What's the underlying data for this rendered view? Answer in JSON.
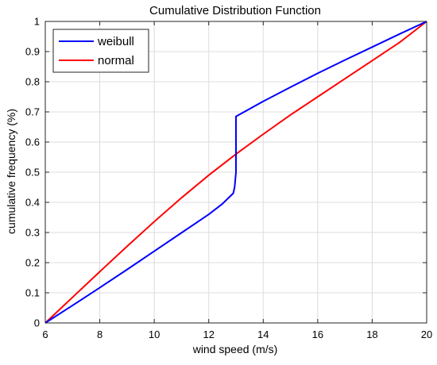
{
  "chart_data": {
    "type": "line",
    "title": "Cumulative Distribution Function",
    "xlabel": "wind speed (m/s)",
    "ylabel": "cumulative frequency (%)",
    "xlim": [
      6,
      20
    ],
    "ylim": [
      0,
      1
    ],
    "xticks": [
      6,
      8,
      10,
      12,
      14,
      16,
      18,
      20
    ],
    "xtick_labels": [
      "6",
      "8",
      "10",
      "12",
      "14",
      "16",
      "18",
      "20"
    ],
    "yticks": [
      0,
      0.1,
      0.2,
      0.3,
      0.4,
      0.5,
      0.6,
      0.7,
      0.8,
      0.9,
      1
    ],
    "ytick_labels": [
      "0",
      "0.1",
      "0.2",
      "0.3",
      "0.4",
      "0.5",
      "0.6",
      "0.7",
      "0.8",
      "0.9",
      "1"
    ],
    "grid": true,
    "legend_position": "top-left",
    "series": [
      {
        "name": "weibull",
        "color": "#0000ff",
        "x": [
          6,
          7,
          8,
          9,
          10,
          11,
          12,
          12.5,
          12.9,
          12.95,
          13.0,
          13.0,
          13.0,
          14,
          15,
          16,
          17,
          18,
          19,
          20
        ],
        "y": [
          0,
          0.058,
          0.117,
          0.177,
          0.238,
          0.299,
          0.36,
          0.395,
          0.43,
          0.45,
          0.5,
          0.6,
          0.685,
          0.735,
          0.782,
          0.828,
          0.872,
          0.915,
          0.958,
          1.0
        ]
      },
      {
        "name": "normal",
        "color": "#ff0000",
        "x": [
          6,
          7,
          8,
          9,
          10,
          11,
          12,
          13,
          14,
          15,
          16,
          17,
          18,
          19,
          20
        ],
        "y": [
          0,
          0.085,
          0.17,
          0.254,
          0.336,
          0.415,
          0.49,
          0.56,
          0.626,
          0.69,
          0.75,
          0.81,
          0.87,
          0.93,
          1.0
        ]
      }
    ]
  }
}
